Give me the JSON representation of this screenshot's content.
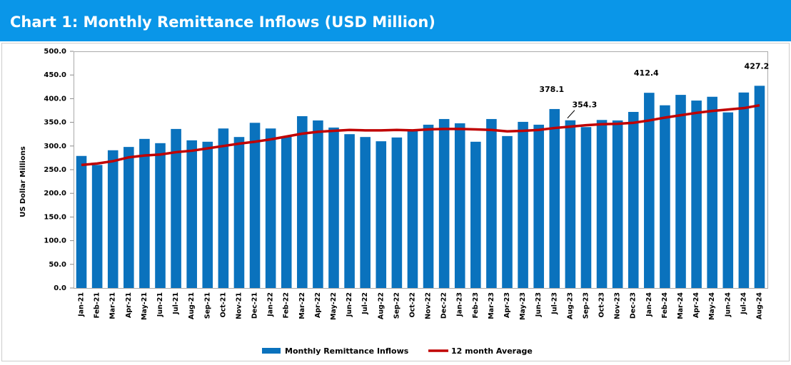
{
  "chart_data": {
    "type": "bar",
    "title": "Chart 1: Monthly Remittance Inflows (USD Million)",
    "y_label": "US Dollar Millions",
    "categories": [
      "Jan-21",
      "Feb-21",
      "Mar-21",
      "Apr-21",
      "May-21",
      "Jun-21",
      "Jul-21",
      "Aug-21",
      "Sep-21",
      "Oct-21",
      "Nov-21",
      "Dec-21",
      "Jan-22",
      "Feb-22",
      "Mar-22",
      "Apr-22",
      "May-22",
      "Jun-22",
      "Jul-22",
      "Aug-22",
      "Sep-22",
      "Oct-22",
      "Nov-22",
      "Dec-22",
      "Jan-23",
      "Feb-23",
      "Mar-23",
      "Apr-23",
      "May-23",
      "Jun-23",
      "Jul-23",
      "Aug-23",
      "Sep-23",
      "Oct-23",
      "Nov-23",
      "Dec-23",
      "Jan-24",
      "Feb-24",
      "Mar-24",
      "Apr-24",
      "May-24",
      "Jun-24",
      "Jul-24",
      "Aug-24"
    ],
    "series": [
      {
        "name": "Monthly Remittance Inflows",
        "type": "bar",
        "color": "#0a72bd",
        "values": [
          279,
          260,
          291,
          298,
          315,
          306,
          336,
          312,
          309,
          337,
          319,
          349,
          337,
          320,
          363,
          354,
          339,
          325,
          319,
          310,
          318,
          333,
          345,
          357,
          348,
          309,
          357,
          321,
          351,
          345,
          378.1,
          354.3,
          340,
          355,
          354,
          372,
          412.4,
          386,
          408,
          396,
          404,
          371,
          413,
          427.2
        ],
        "value_labels": [
          null,
          null,
          null,
          null,
          null,
          null,
          null,
          null,
          null,
          null,
          null,
          null,
          null,
          null,
          null,
          null,
          null,
          null,
          null,
          null,
          null,
          null,
          null,
          null,
          null,
          null,
          null,
          null,
          null,
          null,
          "378.1",
          "354.3",
          null,
          null,
          null,
          null,
          "412.4",
          null,
          null,
          null,
          null,
          null,
          null,
          "427.2"
        ]
      },
      {
        "name": "12 month Average",
        "type": "line",
        "color": "#c00000",
        "values": [
          260,
          263,
          268,
          276,
          280,
          282,
          287,
          290,
          295,
          300,
          305,
          309,
          314,
          320,
          326,
          330,
          332,
          334,
          333,
          333,
          334,
          333,
          335,
          336,
          336,
          335,
          334,
          331,
          332,
          334,
          338,
          341,
          344,
          346,
          347,
          349,
          354,
          360,
          365,
          370,
          374,
          377,
          380,
          386
        ]
      }
    ],
    "ylim": [
      0,
      500
    ],
    "yticks": [
      {
        "value": 0,
        "label": "0.0"
      },
      {
        "value": 50,
        "label": "50.0"
      },
      {
        "value": 100,
        "label": "100.0"
      },
      {
        "value": 150,
        "label": "150.0"
      },
      {
        "value": 200,
        "label": "200.0"
      },
      {
        "value": 250,
        "label": "250.0"
      },
      {
        "value": 300,
        "label": "300.0"
      },
      {
        "value": 350,
        "label": "350.0"
      },
      {
        "value": 400,
        "label": "400.0"
      },
      {
        "value": 450,
        "label": "450.0"
      },
      {
        "value": 500,
        "label": "500.0"
      }
    ],
    "legend": "bottom"
  }
}
